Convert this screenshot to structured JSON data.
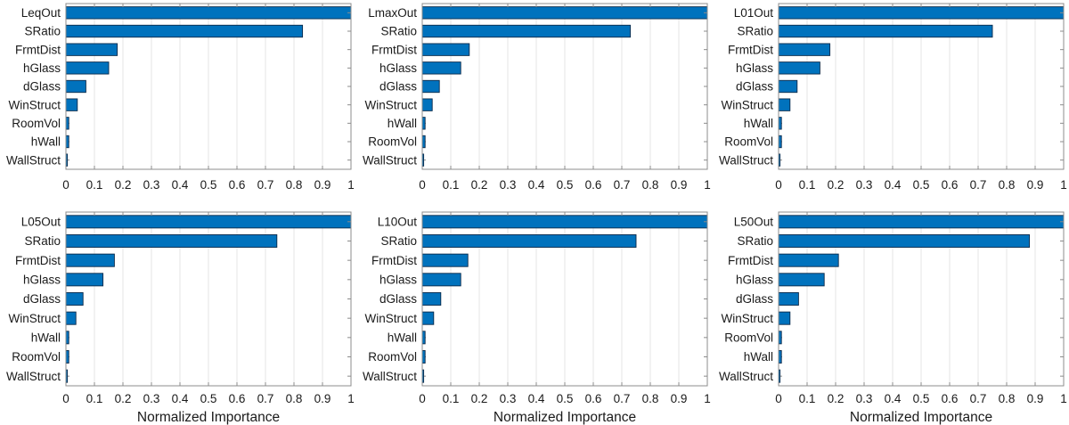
{
  "figure": {
    "background": "#ffffff",
    "bar_color": "#0072BD",
    "bar_edge_color": "#0a2a4a",
    "axis_color": "#8c8c8c",
    "grid_color": "#e4e4e4",
    "text_color": "#1a1a1a",
    "xlabel_bottom_row": "Normalized Importance"
  },
  "chart_data": [
    {
      "type": "bar",
      "orientation": "horizontal",
      "panel": "top-left",
      "title": "",
      "xlabel": "",
      "grid": true,
      "xlim": [
        0,
        1
      ],
      "xticks": [
        0,
        0.1,
        0.2,
        0.3,
        0.4,
        0.5,
        0.6,
        0.7,
        0.8,
        0.9,
        1
      ],
      "xtick_labels": [
        "0",
        "0.1",
        "0.2",
        "0.3",
        "0.4",
        "0.5",
        "0.6",
        "0.7",
        "0.8",
        "0.9",
        "1"
      ],
      "categories": [
        "LeqOut",
        "SRatio",
        "FrmtDist",
        "hGlass",
        "dGlass",
        "WinStruct",
        "RoomVol",
        "hWall",
        "WallStruct"
      ],
      "values": [
        1.0,
        0.83,
        0.18,
        0.15,
        0.07,
        0.04,
        0.01,
        0.01,
        0.005
      ]
    },
    {
      "type": "bar",
      "orientation": "horizontal",
      "panel": "top-middle",
      "title": "",
      "xlabel": "",
      "grid": true,
      "xlim": [
        0,
        1
      ],
      "xticks": [
        0,
        0.1,
        0.2,
        0.3,
        0.4,
        0.5,
        0.6,
        0.7,
        0.8,
        0.9,
        1
      ],
      "xtick_labels": [
        "0",
        "0.1",
        "0.2",
        "0.3",
        "0.4",
        "0.5",
        "0.6",
        "0.7",
        "0.8",
        "0.9",
        "1"
      ],
      "categories": [
        "LmaxOut",
        "SRatio",
        "FrmtDist",
        "hGlass",
        "dGlass",
        "WinStruct",
        "hWall",
        "RoomVol",
        "WallStruct"
      ],
      "values": [
        1.0,
        0.73,
        0.165,
        0.135,
        0.06,
        0.035,
        0.01,
        0.01,
        0.005
      ]
    },
    {
      "type": "bar",
      "orientation": "horizontal",
      "panel": "top-right",
      "title": "",
      "xlabel": "",
      "grid": true,
      "xlim": [
        0,
        1
      ],
      "xticks": [
        0,
        0.1,
        0.2,
        0.3,
        0.4,
        0.5,
        0.6,
        0.7,
        0.8,
        0.9,
        1
      ],
      "xtick_labels": [
        "0",
        "0.1",
        "0.2",
        "0.3",
        "0.4",
        "0.5",
        "0.6",
        "0.7",
        "0.8",
        "0.9",
        "1"
      ],
      "categories": [
        "L01Out",
        "SRatio",
        "FrmtDist",
        "hGlass",
        "dGlass",
        "WinStruct",
        "hWall",
        "RoomVol",
        "WallStruct"
      ],
      "values": [
        1.0,
        0.75,
        0.18,
        0.145,
        0.065,
        0.04,
        0.01,
        0.01,
        0.005
      ]
    },
    {
      "type": "bar",
      "orientation": "horizontal",
      "panel": "bottom-left",
      "title": "",
      "xlabel": "Normalized Importance",
      "grid": true,
      "xlim": [
        0,
        1
      ],
      "xticks": [
        0,
        0.1,
        0.2,
        0.3,
        0.4,
        0.5,
        0.6,
        0.7,
        0.8,
        0.9,
        1
      ],
      "xtick_labels": [
        "0",
        "0.1",
        "0.2",
        "0.3",
        "0.4",
        "0.5",
        "0.6",
        "0.7",
        "0.8",
        "0.9",
        "1"
      ],
      "categories": [
        "L05Out",
        "SRatio",
        "FrmtDist",
        "hGlass",
        "dGlass",
        "WinStruct",
        "hWall",
        "RoomVol",
        "WallStruct"
      ],
      "values": [
        1.0,
        0.74,
        0.17,
        0.13,
        0.06,
        0.035,
        0.01,
        0.01,
        0.005
      ]
    },
    {
      "type": "bar",
      "orientation": "horizontal",
      "panel": "bottom-middle",
      "title": "",
      "xlabel": "Normalized Importance",
      "grid": true,
      "xlim": [
        0,
        1
      ],
      "xticks": [
        0,
        0.1,
        0.2,
        0.3,
        0.4,
        0.5,
        0.6,
        0.7,
        0.8,
        0.9,
        1
      ],
      "xtick_labels": [
        "0",
        "0.1",
        "0.2",
        "0.3",
        "0.4",
        "0.5",
        "0.6",
        "0.7",
        "0.8",
        "0.9",
        "1"
      ],
      "categories": [
        "L10Out",
        "SRatio",
        "FrmtDist",
        "hGlass",
        "dGlass",
        "WinStruct",
        "hWall",
        "RoomVol",
        "WallStruct"
      ],
      "values": [
        1.0,
        0.75,
        0.16,
        0.135,
        0.065,
        0.04,
        0.01,
        0.01,
        0.005
      ]
    },
    {
      "type": "bar",
      "orientation": "horizontal",
      "panel": "bottom-right",
      "title": "",
      "xlabel": "Normalized Importance",
      "grid": true,
      "xlim": [
        0,
        1
      ],
      "xticks": [
        0,
        0.1,
        0.2,
        0.3,
        0.4,
        0.5,
        0.6,
        0.7,
        0.8,
        0.9,
        1
      ],
      "xtick_labels": [
        "0",
        "0.1",
        "0.2",
        "0.3",
        "0.4",
        "0.5",
        "0.6",
        "0.7",
        "0.8",
        "0.9",
        "1"
      ],
      "categories": [
        "L50Out",
        "SRatio",
        "FrmtDist",
        "hGlass",
        "dGlass",
        "WinStruct",
        "RoomVol",
        "hWall",
        "WallStruct"
      ],
      "values": [
        1.0,
        0.88,
        0.21,
        0.16,
        0.07,
        0.04,
        0.01,
        0.01,
        0.005
      ]
    }
  ]
}
